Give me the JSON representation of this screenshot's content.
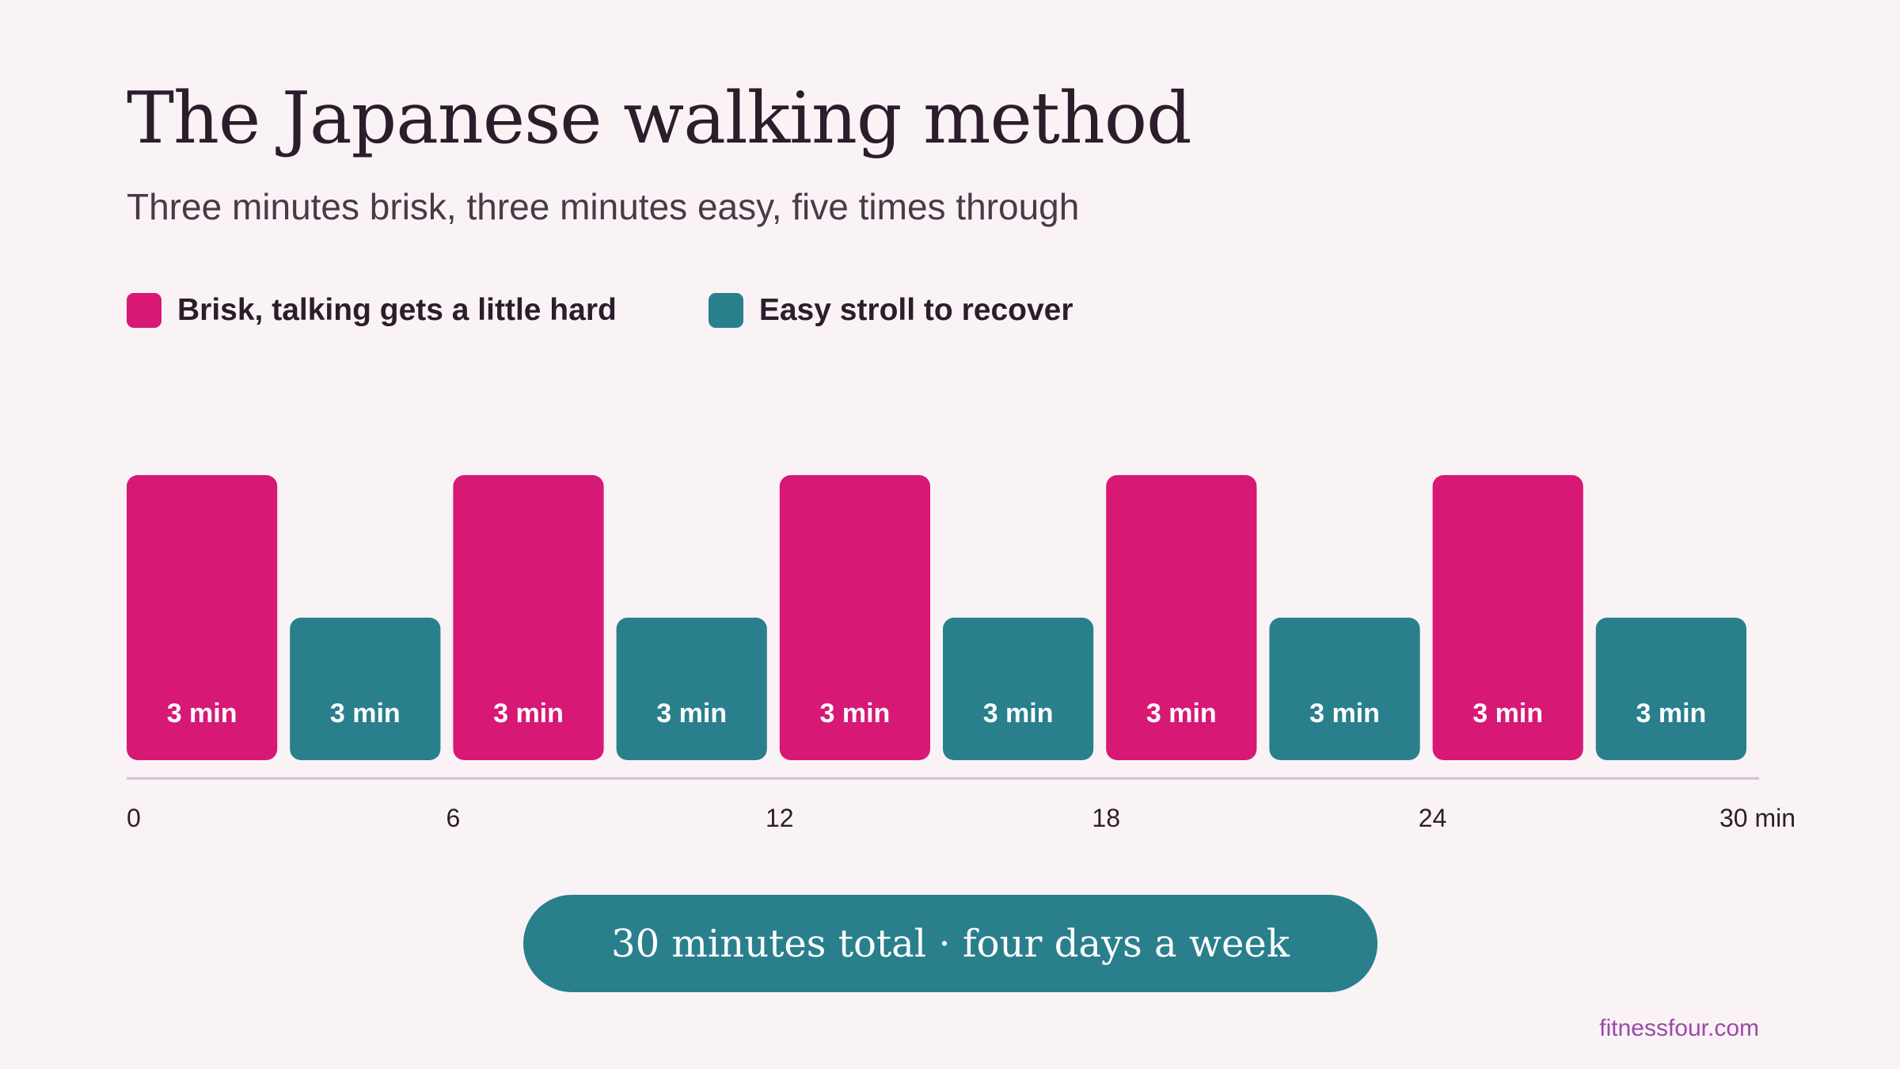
{
  "header": {
    "title": "The Japanese walking method",
    "subtitle": "Three minutes brisk, three minutes easy, five times through"
  },
  "legend": [
    {
      "label": "Brisk, talking gets a little hard",
      "color": "#d81875"
    },
    {
      "label": "Easy stroll to recover",
      "color": "#2a7f8c"
    }
  ],
  "chart_data": {
    "type": "bar",
    "categories": [
      "Brisk",
      "Easy",
      "Brisk",
      "Easy",
      "Brisk",
      "Easy",
      "Brisk",
      "Easy",
      "Brisk",
      "Easy"
    ],
    "intervals": [
      {
        "phase": "brisk",
        "start": 0,
        "duration": 3,
        "label": "3 min"
      },
      {
        "phase": "easy",
        "start": 3,
        "duration": 3,
        "label": "3 min"
      },
      {
        "phase": "brisk",
        "start": 6,
        "duration": 3,
        "label": "3 min"
      },
      {
        "phase": "easy",
        "start": 9,
        "duration": 3,
        "label": "3 min"
      },
      {
        "phase": "brisk",
        "start": 12,
        "duration": 3,
        "label": "3 min"
      },
      {
        "phase": "easy",
        "start": 15,
        "duration": 3,
        "label": "3 min"
      },
      {
        "phase": "brisk",
        "start": 18,
        "duration": 3,
        "label": "3 min"
      },
      {
        "phase": "easy",
        "start": 21,
        "duration": 3,
        "label": "3 min"
      },
      {
        "phase": "brisk",
        "start": 24,
        "duration": 3,
        "label": "3 min"
      },
      {
        "phase": "easy",
        "start": 27,
        "duration": 3,
        "label": "3 min"
      }
    ],
    "intensity": {
      "brisk": 2,
      "easy": 1
    },
    "colors": {
      "brisk": "#d81875",
      "easy": "#2a7f8c",
      "axis": "#dcb8d6"
    },
    "x_ticks": [
      {
        "value": 0,
        "label": "0"
      },
      {
        "value": 6,
        "label": "6"
      },
      {
        "value": 12,
        "label": "12"
      },
      {
        "value": 18,
        "label": "18"
      },
      {
        "value": 24,
        "label": "24"
      },
      {
        "value": 30,
        "label": "30 min"
      }
    ],
    "xlim": [
      0,
      30
    ],
    "xlabel": "",
    "ylabel": "",
    "grid": false,
    "legend_position": "top-left"
  },
  "summary": "30 minutes total · four days a week",
  "footer": {
    "credit": "fitnessfour.com"
  }
}
